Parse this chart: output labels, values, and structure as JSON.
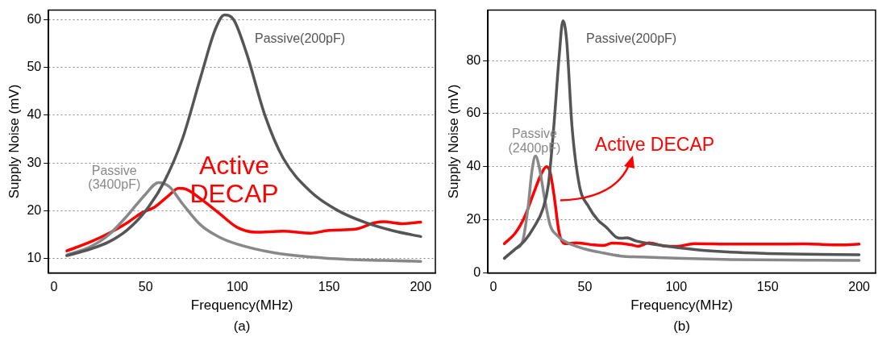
{
  "chart_data": [
    {
      "type": "line",
      "xlabel": "Frequency(MHz)",
      "ylabel": "Supply Noise (mV)",
      "xlim": [
        -3,
        208
      ],
      "xticks": [
        0,
        50,
        100,
        150,
        200
      ],
      "ylim": [
        7,
        62
      ],
      "yticks": [
        10,
        20,
        30,
        40,
        50,
        60
      ],
      "grid": "y",
      "legend": false,
      "marker": "none",
      "line_style": "solid",
      "series": [
        {
          "name": "Passive(200pF)",
          "color": "#555555",
          "x": [
            7,
            20,
            30,
            40,
            50,
            60,
            70,
            80,
            88,
            93,
            98,
            105,
            115,
            125,
            140,
            155,
            170,
            185,
            200
          ],
          "values": [
            10.6,
            12,
            13.5,
            16,
            20,
            26,
            35,
            48,
            58,
            61,
            60,
            53,
            40,
            31,
            24,
            20,
            17.5,
            15.8,
            14.6
          ]
        },
        {
          "name": "Passive (3400pF)",
          "color": "#888888",
          "x": [
            7,
            20,
            30,
            40,
            50,
            57,
            63,
            70,
            80,
            90,
            100,
            120,
            140,
            160,
            180,
            200
          ],
          "values": [
            10.7,
            12.5,
            15,
            19,
            23.5,
            25.9,
            25,
            21.5,
            17,
            14.5,
            13,
            11.2,
            10.3,
            9.8,
            9.6,
            9.4
          ]
        },
        {
          "name": "Active DECAP",
          "color": "#ff0000",
          "x": [
            7,
            20,
            30,
            40,
            48,
            55,
            62,
            68,
            72,
            80,
            90,
            100,
            110,
            125,
            140,
            150,
            165,
            175,
            180,
            190,
            200
          ],
          "values": [
            11.6,
            13.5,
            15.3,
            17.5,
            19.6,
            20.8,
            23,
            24.7,
            24.5,
            22.5,
            19.5,
            16.5,
            15.5,
            15.7,
            15.3,
            15.9,
            16.2,
            17.5,
            17.7,
            17.3,
            17.6
          ]
        }
      ],
      "annotations": [
        "(a)"
      ]
    },
    {
      "type": "line",
      "xlabel": "Frequency(MHz)",
      "ylabel": "Supply Noise (mV)",
      "xlim": [
        -3,
        209
      ],
      "xticks": [
        0,
        50,
        100,
        150,
        200
      ],
      "ylim": [
        0,
        99
      ],
      "yticks": [
        0,
        20,
        40,
        60,
        80
      ],
      "grid": "y",
      "legend": false,
      "marker": "none",
      "line_style": "solid",
      "series": [
        {
          "name": "Passive(200pF)",
          "color": "#555555",
          "x": [
            6,
            12,
            17,
            22,
            27,
            30,
            33,
            36,
            38,
            40,
            43,
            47,
            52,
            57,
            62,
            67,
            70,
            73,
            78,
            90,
            110,
            130,
            150,
            170,
            200
          ],
          "values": [
            5.5,
            9,
            12,
            17,
            24,
            33,
            55,
            82,
            95,
            88,
            55,
            33,
            25,
            20,
            17,
            13.5,
            13,
            13.2,
            12,
            10.5,
            8.8,
            7.8,
            7.3,
            7,
            6.8
          ]
        },
        {
          "name": "Passive (2400pF)",
          "color": "#888888",
          "x": [
            6,
            12,
            16,
            19,
            21,
            23,
            25,
            28,
            31,
            35,
            40,
            50,
            60,
            70,
            80,
            100,
            130,
            160,
            200
          ],
          "values": [
            5.5,
            9,
            12,
            25,
            38,
            44,
            40,
            28,
            18,
            14,
            11.5,
            9,
            7.5,
            6.3,
            6,
            5.5,
            5,
            4.8,
            4.7
          ]
        },
        {
          "name": "Active DECAP",
          "color": "#ff0000",
          "x": [
            6,
            12,
            17,
            22,
            26,
            29,
            31,
            33,
            36,
            39,
            45,
            55,
            60,
            65,
            75,
            79,
            85,
            95,
            100,
            110,
            130,
            150,
            170,
            190,
            200
          ],
          "values": [
            11,
            15,
            21,
            30,
            37,
            40,
            38,
            30,
            15,
            11,
            11.3,
            10.5,
            10.3,
            11.2,
            10.6,
            10,
            11.3,
            10,
            10,
            11,
            10.8,
            10.8,
            10.9,
            10.5,
            10.8
          ]
        }
      ],
      "annotations": [
        "(b)"
      ]
    }
  ]
}
